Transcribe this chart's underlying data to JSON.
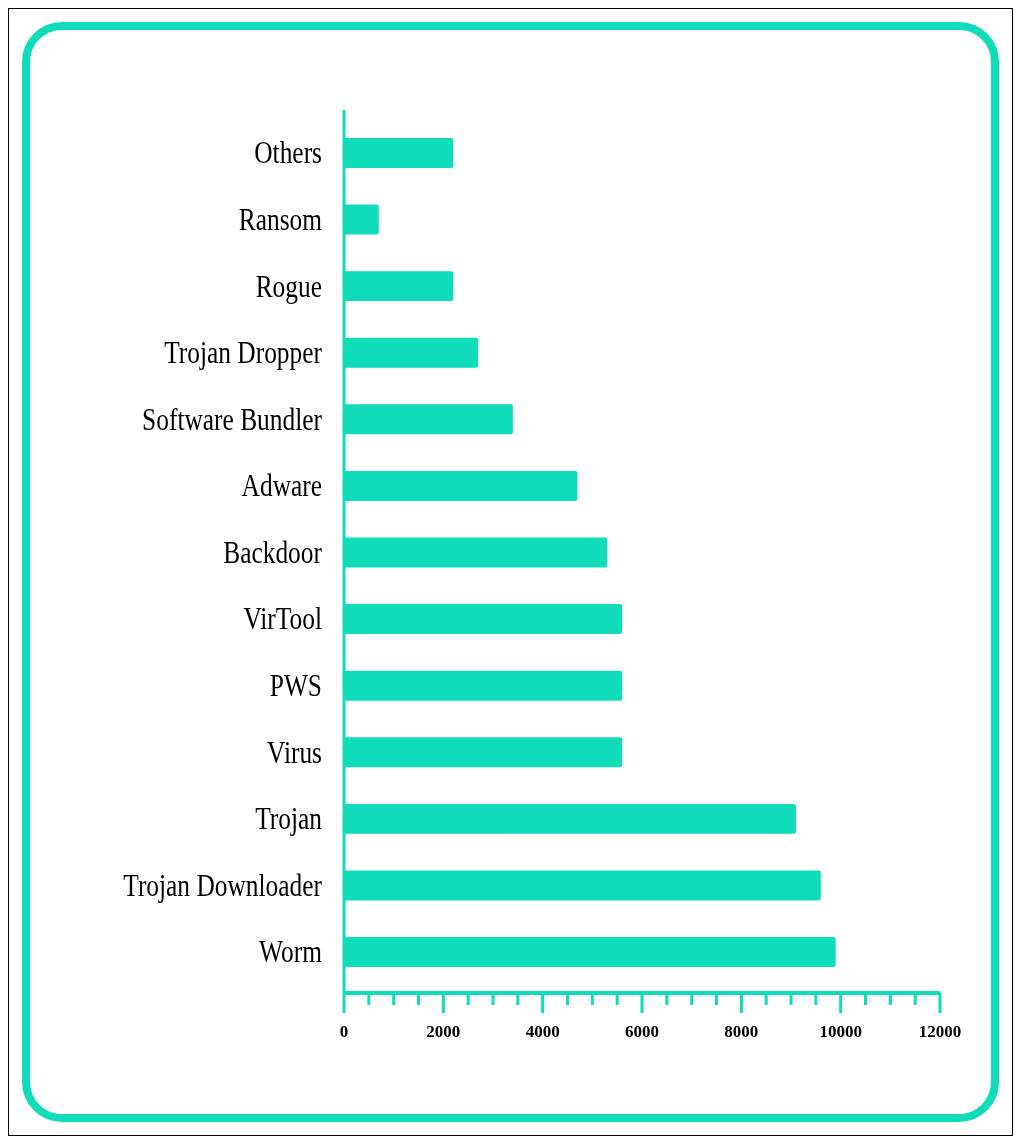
{
  "chart_data": {
    "type": "bar",
    "orientation": "horizontal",
    "categories": [
      "Others",
      "Ransom",
      "Rogue",
      "Trojan Dropper",
      "Software Bundler",
      "Adware",
      "Backdoor",
      "VirTool",
      "PWS",
      "Virus",
      "Trojan",
      "Trojan Downloader",
      "Worm"
    ],
    "values": [
      2200,
      700,
      2200,
      2700,
      3400,
      4700,
      5300,
      5600,
      5600,
      5600,
      9100,
      9600,
      9900
    ],
    "color": "#10dcb9",
    "xlim": [
      0,
      12000
    ],
    "xticks": [
      0,
      {
        "value": 500,
        "label": null
      },
      {
        "value": 1000,
        "label": null
      },
      {
        "value": 1500,
        "label": null
      },
      2000,
      {
        "value": 2500,
        "label": null
      },
      {
        "value": 3000,
        "label": null
      },
      {
        "value": 3500,
        "label": null
      },
      4000,
      {
        "value": 4500,
        "label": null
      },
      {
        "value": 5000,
        "label": null
      },
      {
        "value": 5500,
        "label": null
      },
      6000,
      {
        "value": 6500,
        "label": null
      },
      {
        "value": 7000,
        "label": null
      },
      {
        "value": 7500,
        "label": null
      },
      8000,
      {
        "value": 8500,
        "label": null
      },
      {
        "value": 9000,
        "label": null
      },
      {
        "value": 9500,
        "label": null
      },
      10000,
      {
        "value": 10500,
        "label": null
      },
      {
        "value": 11000,
        "label": null
      },
      {
        "value": 11500,
        "label": null
      },
      12000
    ],
    "grid": false
  }
}
